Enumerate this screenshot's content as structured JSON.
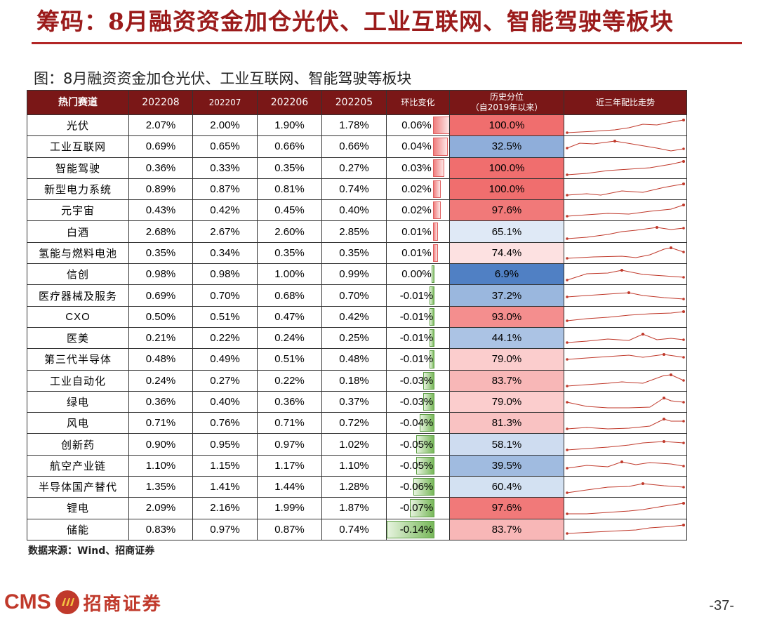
{
  "title": "筹码：8月融资资金加仓光伏、工业互联网、智能驾驶等板块",
  "figure_caption": "图：8月融资资金加仓光伏、工业互联网、智能驾驶等板块",
  "table": {
    "headers": {
      "sector": "热门赛道",
      "m08": "202208",
      "m07": "202207",
      "m06": "202206",
      "m05": "202205",
      "mom": "环比变化",
      "hist_line1": "历史分位",
      "hist_line2": "（自2019年以来）",
      "trend": "近三年配比走势"
    },
    "rows": [
      {
        "name": "光伏",
        "m08": "2.07%",
        "m07": "2.00%",
        "m06": "1.90%",
        "m05": "1.78%",
        "chg": "0.06%",
        "chg_num": 0.06,
        "pct": "100.0%",
        "pct_num": 100.0
      },
      {
        "name": "工业互联网",
        "m08": "0.69%",
        "m07": "0.65%",
        "m06": "0.66%",
        "m05": "0.66%",
        "chg": "0.04%",
        "chg_num": 0.04,
        "pct": "32.5%",
        "pct_num": 32.5
      },
      {
        "name": "智能驾驶",
        "m08": "0.36%",
        "m07": "0.33%",
        "m06": "0.35%",
        "m05": "0.27%",
        "chg": "0.03%",
        "chg_num": 0.03,
        "pct": "100.0%",
        "pct_num": 100.0
      },
      {
        "name": "新型电力系统",
        "m08": "0.89%",
        "m07": "0.87%",
        "m06": "0.81%",
        "m05": "0.74%",
        "chg": "0.02%",
        "chg_num": 0.02,
        "pct": "100.0%",
        "pct_num": 100.0
      },
      {
        "name": "元宇宙",
        "m08": "0.43%",
        "m07": "0.42%",
        "m06": "0.45%",
        "m05": "0.40%",
        "chg": "0.02%",
        "chg_num": 0.02,
        "pct": "97.6%",
        "pct_num": 97.6
      },
      {
        "name": "白酒",
        "m08": "2.68%",
        "m07": "2.67%",
        "m06": "2.60%",
        "m05": "2.85%",
        "chg": "0.01%",
        "chg_num": 0.01,
        "pct": "65.1%",
        "pct_num": 65.1
      },
      {
        "name": "氢能与燃料电池",
        "m08": "0.35%",
        "m07": "0.34%",
        "m06": "0.35%",
        "m05": "0.35%",
        "chg": "0.01%",
        "chg_num": 0.01,
        "pct": "74.4%",
        "pct_num": 74.4
      },
      {
        "name": "信创",
        "m08": "0.98%",
        "m07": "0.98%",
        "m06": "1.00%",
        "m05": "0.99%",
        "chg": "0.00%",
        "chg_num": 0.0,
        "pct": "6.9%",
        "pct_num": 6.9
      },
      {
        "name": "医疗器械及服务",
        "m08": "0.69%",
        "m07": "0.70%",
        "m06": "0.68%",
        "m05": "0.70%",
        "chg": "-0.01%",
        "chg_num": -0.01,
        "pct": "37.2%",
        "pct_num": 37.2
      },
      {
        "name": "CXO",
        "m08": "0.50%",
        "m07": "0.51%",
        "m06": "0.47%",
        "m05": "0.42%",
        "chg": "-0.01%",
        "chg_num": -0.01,
        "pct": "93.0%",
        "pct_num": 93.0
      },
      {
        "name": "医美",
        "m08": "0.21%",
        "m07": "0.22%",
        "m06": "0.24%",
        "m05": "0.25%",
        "chg": "-0.01%",
        "chg_num": -0.01,
        "pct": "44.1%",
        "pct_num": 44.1
      },
      {
        "name": "第三代半导体",
        "m08": "0.48%",
        "m07": "0.49%",
        "m06": "0.51%",
        "m05": "0.48%",
        "chg": "-0.01%",
        "chg_num": -0.01,
        "pct": "79.0%",
        "pct_num": 79.0
      },
      {
        "name": "工业自动化",
        "m08": "0.24%",
        "m07": "0.27%",
        "m06": "0.22%",
        "m05": "0.18%",
        "chg": "-0.03%",
        "chg_num": -0.03,
        "pct": "83.7%",
        "pct_num": 83.7
      },
      {
        "name": "绿电",
        "m08": "0.36%",
        "m07": "0.40%",
        "m06": "0.36%",
        "m05": "0.37%",
        "chg": "-0.03%",
        "chg_num": -0.03,
        "pct": "79.0%",
        "pct_num": 79.0
      },
      {
        "name": "风电",
        "m08": "0.71%",
        "m07": "0.76%",
        "m06": "0.71%",
        "m05": "0.72%",
        "chg": "-0.04%",
        "chg_num": -0.04,
        "pct": "81.3%",
        "pct_num": 81.3
      },
      {
        "name": "创新药",
        "m08": "0.90%",
        "m07": "0.95%",
        "m06": "0.97%",
        "m05": "1.02%",
        "chg": "-0.05%",
        "chg_num": -0.05,
        "pct": "58.1%",
        "pct_num": 58.1
      },
      {
        "name": "航空产业链",
        "m08": "1.10%",
        "m07": "1.15%",
        "m06": "1.17%",
        "m05": "1.10%",
        "chg": "-0.05%",
        "chg_num": -0.05,
        "pct": "39.5%",
        "pct_num": 39.5
      },
      {
        "name": "半导体国产替代",
        "m08": "1.35%",
        "m07": "1.41%",
        "m06": "1.44%",
        "m05": "1.28%",
        "chg": "-0.06%",
        "chg_num": -0.06,
        "pct": "60.4%",
        "pct_num": 60.4
      },
      {
        "name": "锂电",
        "m08": "2.09%",
        "m07": "2.16%",
        "m06": "1.99%",
        "m05": "1.87%",
        "chg": "-0.07%",
        "chg_num": -0.07,
        "pct": "97.6%",
        "pct_num": 97.6
      },
      {
        "name": "储能",
        "m08": "0.83%",
        "m07": "0.97%",
        "m06": "0.87%",
        "m05": "0.74%",
        "chg": "-0.14%",
        "chg_num": -0.14,
        "pct": "83.7%",
        "pct_num": 83.7
      }
    ]
  },
  "source": "数据来源：Wind、招商证券",
  "logo": {
    "brand": "CMS",
    "name_cn": "招商证券"
  },
  "page_number": "-37-",
  "colors": {
    "title": "#9b1b1b",
    "header_bg": "#7a1717",
    "high": "#f07373",
    "low": "#4f7fc4",
    "pos_bar": "#f07e7e",
    "neg_bar": "#78b85a",
    "spark": "#c0392b"
  }
}
